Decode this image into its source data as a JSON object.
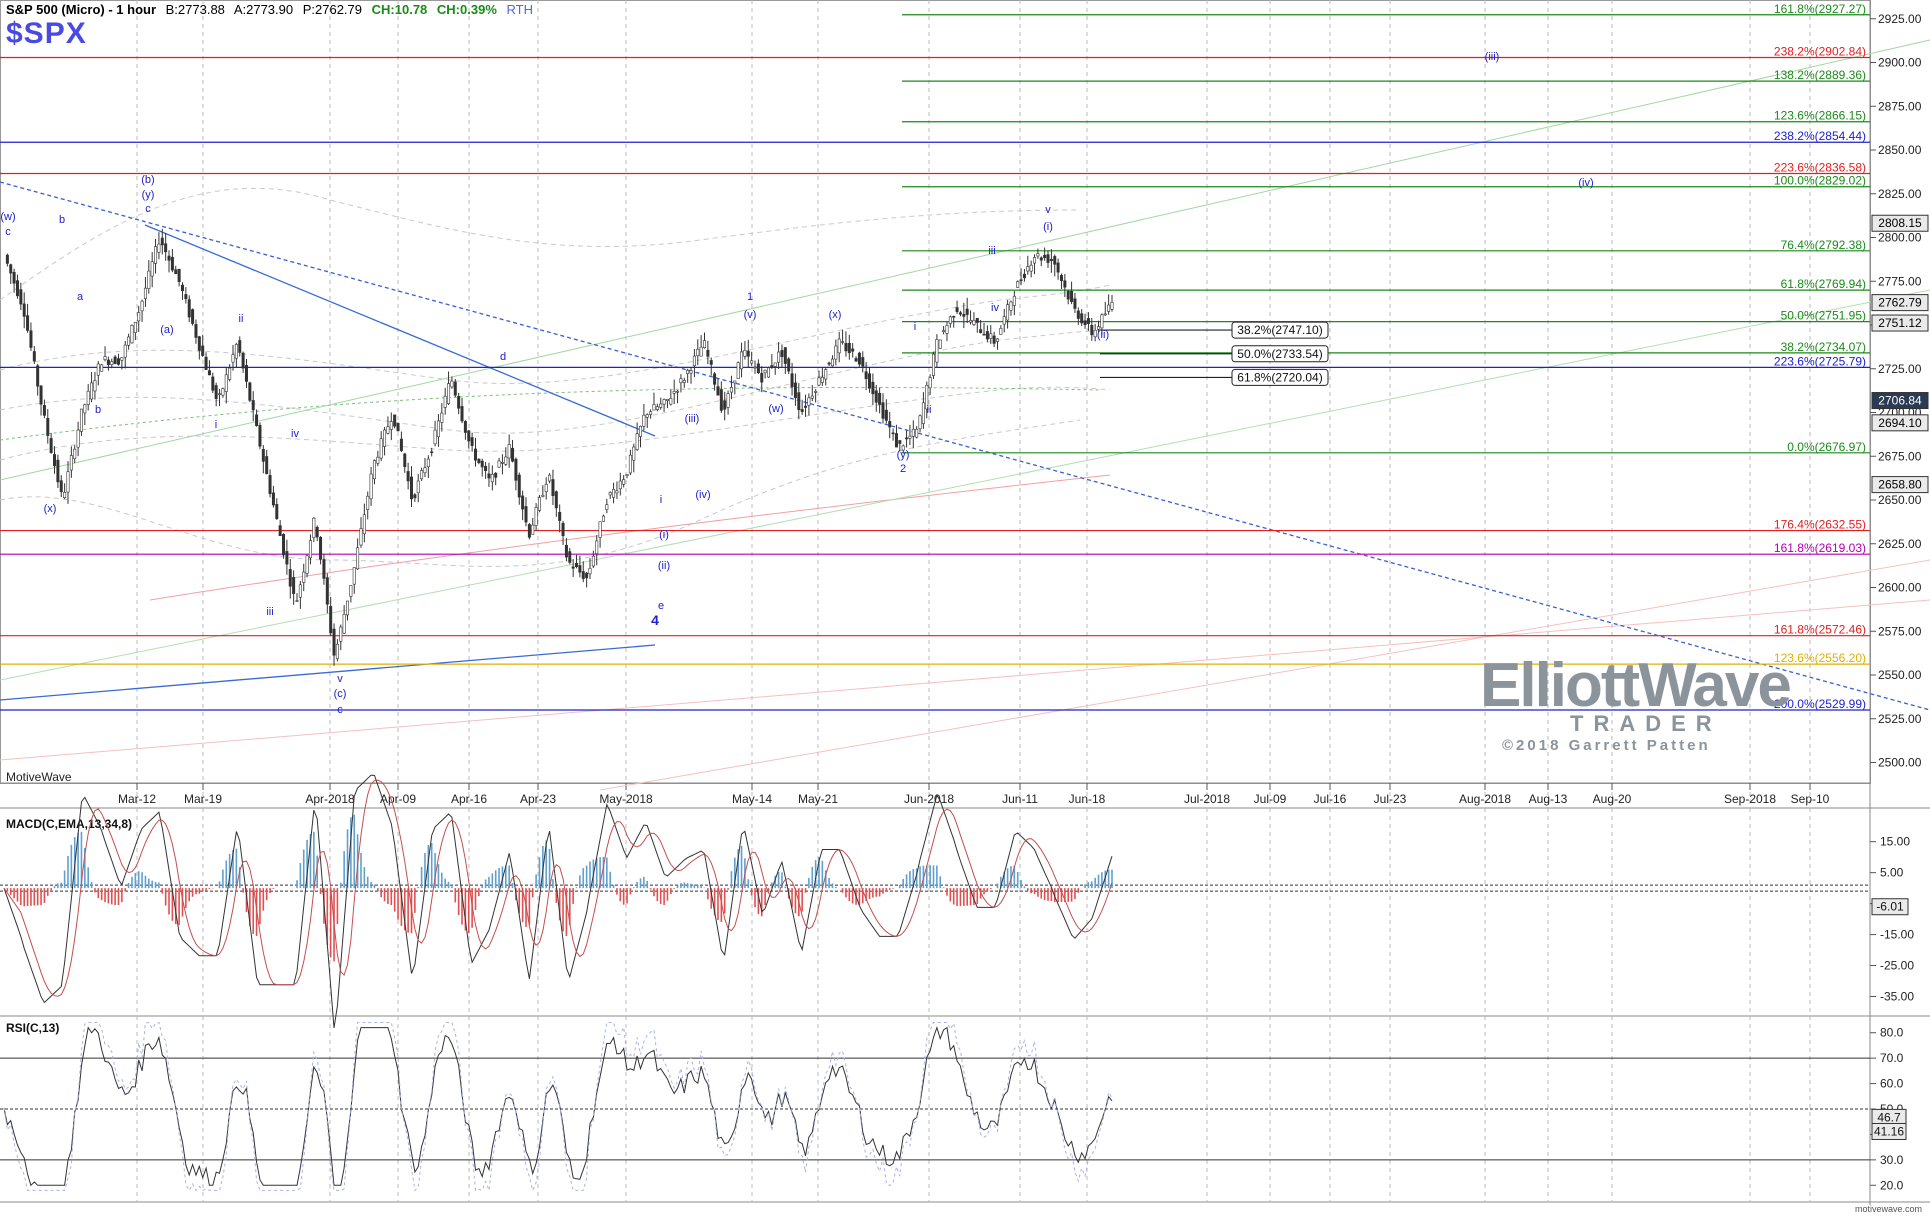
{
  "header": {
    "title": "S&P 500 (Micro) - 1 hour",
    "bid": "B:2773.88",
    "ask": "A:2773.90",
    "price": "P:2762.79",
    "change": "CH:10.78",
    "change_pct": "CH:0.39%",
    "session": "RTH",
    "ticker": "$SPX"
  },
  "brand": "MotiveWave",
  "footer_brand": "motivewave.com",
  "watermark": {
    "line1": "ElliottWave",
    "line2": "TRADER",
    "copyright": "©2018 Garrett Patten"
  },
  "colors": {
    "fib_green": "#1a8a1a",
    "fib_red": "#e02020",
    "fib_blue": "#2020cc",
    "fib_magenta": "#b000b0",
    "fib_yellow": "#e0b000",
    "wave_label": "#2020cc",
    "candle": "#333333",
    "macd_up": "#5fa0d0",
    "macd_down": "#e05050"
  },
  "chart_data": [
    {
      "type": "candlestick",
      "title": "S&P 500 (Micro) - 1 hour",
      "ylim": [
        2490,
        2930
      ],
      "y_ticks": [
        "2925.00",
        "2900.00",
        "2875.00",
        "2850.00",
        "2825.00",
        "2800.00",
        "2775.00",
        "2750.00",
        "2725.00",
        "2700.00",
        "2675.00",
        "2650.00",
        "2625.00",
        "2600.00",
        "2575.00",
        "2550.00",
        "2525.00",
        "2500.00"
      ],
      "x_tick_labels": [
        "Mar-12",
        "Mar-19",
        "Apr-2018",
        "Apr-09",
        "Apr-16",
        "Apr-23",
        "May-2018",
        "May-14",
        "May-21",
        "Jun-2018",
        "Jun-11",
        "Jun-18",
        "Jul-2018",
        "Jul-09",
        "Jul-16",
        "Jul-23",
        "Aug-2018",
        "Aug-13",
        "Aug-20",
        "Sep-2018",
        "Sep-10"
      ],
      "price_path": [
        2790,
        2760,
        2700,
        2650,
        2700,
        2730,
        2730,
        2760,
        2800,
        2775,
        2740,
        2705,
        2740,
        2690,
        2640,
        2590,
        2640,
        2560,
        2610,
        2670,
        2700,
        2650,
        2680,
        2720,
        2680,
        2660,
        2680,
        2630,
        2665,
        2615,
        2605,
        2650,
        2665,
        2700,
        2705,
        2720,
        2740,
        2700,
        2735,
        2720,
        2735,
        2700,
        2720,
        2740,
        2730,
        2705,
        2680,
        2690,
        2740,
        2760,
        2750,
        2740,
        2770,
        2790,
        2787,
        2760,
        2745,
        2762.79
      ],
      "fib_levels": [
        {
          "label": "161.8%(2927.27)",
          "value": 2927.27,
          "color": "#1a8a1a",
          "style": "solid"
        },
        {
          "label": "238.2%(2902.84)",
          "value": 2902.84,
          "color": "#e02020",
          "style": "solid"
        },
        {
          "label": "138.2%(2889.36)",
          "value": 2889.36,
          "color": "#1a8a1a",
          "style": "solid"
        },
        {
          "label": "123.6%(2866.15)",
          "value": 2866.15,
          "color": "#1a8a1a",
          "style": "solid"
        },
        {
          "label": "238.2%(2854.44)",
          "value": 2854.44,
          "color": "#2020cc",
          "style": "solid"
        },
        {
          "label": "223.6%(2836.58)",
          "value": 2836.58,
          "color": "#e02020",
          "style": "solid"
        },
        {
          "label": "100.0%(2829.02)",
          "value": 2829.02,
          "color": "#1a8a1a",
          "style": "solid"
        },
        {
          "label": "76.4%(2792.38)",
          "value": 2792.38,
          "color": "#1a8a1a",
          "style": "solid"
        },
        {
          "label": "61.8%(2769.94)",
          "value": 2769.94,
          "color": "#1a8a1a",
          "style": "solid"
        },
        {
          "label": "50.0%(2751.95)",
          "value": 2751.95,
          "color": "#1a8a1a",
          "style": "solid"
        },
        {
          "label": "38.2%(2734.07)",
          "value": 2734.07,
          "color": "#1a8a1a",
          "style": "solid"
        },
        {
          "label": "223.6%(2725.79)",
          "value": 2725.79,
          "color": "#2020cc",
          "style": "solid"
        },
        {
          "label": "0.0%(2676.97)",
          "value": 2676.97,
          "color": "#1a8a1a",
          "style": "solid"
        },
        {
          "label": "176.4%(2632.55)",
          "value": 2632.55,
          "color": "#e02020",
          "style": "solid"
        },
        {
          "label": "161.8%(2619.03)",
          "value": 2619.03,
          "color": "#b000b0",
          "style": "solid"
        },
        {
          "label": "161.8%(2572.46)",
          "value": 2572.46,
          "color": "#e02020",
          "style": "solid"
        },
        {
          "label": "123.6%(2556.20)",
          "value": 2556.2,
          "color": "#e0b000",
          "style": "solid"
        },
        {
          "label": "200.0%(2529.99)",
          "value": 2529.99,
          "color": "#2020cc",
          "style": "solid"
        }
      ],
      "retracement_boxes": [
        {
          "label": "38.2%(2747.10)",
          "value": 2747.1
        },
        {
          "label": "50.0%(2733.54)",
          "value": 2733.54
        },
        {
          "label": "61.8%(2720.04)",
          "value": 2720.04
        }
      ],
      "price_tags": [
        {
          "label": "2808.15",
          "value": 2808.15
        },
        {
          "label": "2762.79",
          "value": 2762.79
        },
        {
          "label": "2751.12",
          "value": 2751.12
        },
        {
          "label": "2706.84",
          "value": 2706.84
        },
        {
          "label": "2694.10",
          "value": 2694.1
        },
        {
          "label": "2658.80",
          "value": 2658.8
        }
      ],
      "wave_labels": [
        "(w)",
        "c",
        "b",
        "(y)",
        "c",
        "(b)",
        "a",
        "(a)",
        "b",
        "(x)",
        "ii",
        "i",
        "iii",
        "iv",
        "v",
        "(c)",
        "c",
        "d",
        "i",
        "(iii)",
        "(iv)",
        "(i)",
        "(ii)",
        "e",
        "4",
        "1",
        "(v)",
        "(w)",
        "(x)",
        "i",
        "ii",
        "(y)",
        "2",
        "iv",
        "iii",
        "(i)",
        "v",
        "(ii)",
        "(iii)",
        "(iv)"
      ]
    },
    {
      "type": "line",
      "title": "MACD(C,EMA,13,34,8)",
      "ylim": [
        -40,
        22
      ],
      "y_ticks": [
        "15.00",
        "5.00",
        "-5.00",
        "-15.00",
        "-25.00",
        "-35.00"
      ],
      "value_tag": "-6.01"
    },
    {
      "type": "line",
      "title": "RSI(C,13)",
      "ylim": [
        15,
        85
      ],
      "y_ticks": [
        "80.0",
        "70.0",
        "60.0",
        "50.0",
        "40.0",
        "30.0",
        "20.0"
      ],
      "value_tags": [
        "46.7",
        "41.16"
      ]
    }
  ]
}
